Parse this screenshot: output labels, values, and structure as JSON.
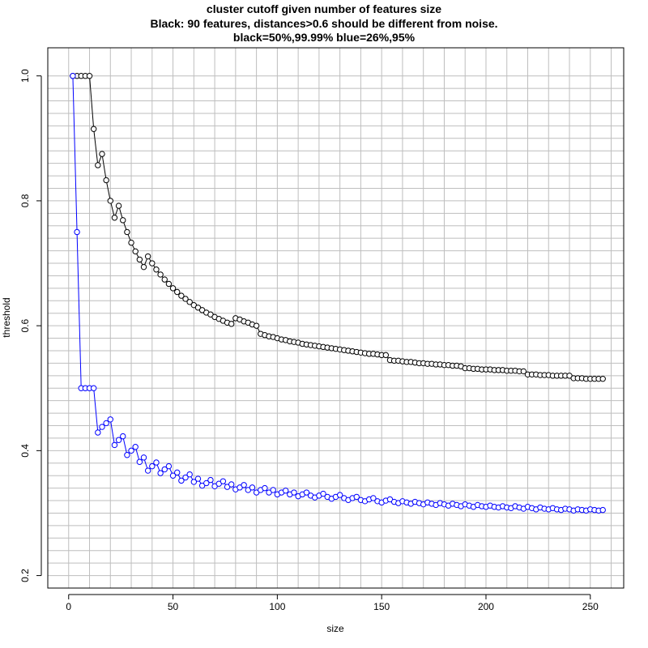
{
  "chart_data": {
    "type": "scatter",
    "title": "cluster cutoff given number of features size",
    "subtitle": "Black: 90 features, distances>0.6 should be different from noise.",
    "subtitle2": "black=50%,99.99% blue=26%,95%",
    "xlabel": "size",
    "ylabel": "threshold",
    "xlim": [
      -10,
      266
    ],
    "ylim": [
      0.18,
      1.045
    ],
    "xticks": [
      0,
      50,
      100,
      150,
      200,
      250
    ],
    "yticks": [
      0.2,
      0.4,
      0.6,
      0.8,
      1.0
    ],
    "ytick_labels": [
      "0.2",
      "0.4",
      "0.6",
      "0.8",
      "1.0"
    ],
    "grid": true,
    "marker": "open-circle",
    "line_style": "connected",
    "series": [
      {
        "color": "#000000",
        "x": [
          2,
          4,
          6,
          8,
          10,
          12,
          14,
          16,
          18,
          20,
          22,
          24,
          26,
          28,
          30,
          32,
          34,
          36,
          38,
          40,
          42,
          44,
          46,
          48,
          50,
          52,
          54,
          56,
          58,
          60,
          62,
          64,
          66,
          68,
          70,
          72,
          74,
          76,
          78,
          80,
          82,
          84,
          86,
          88,
          90,
          92,
          94,
          96,
          98,
          100,
          102,
          104,
          106,
          108,
          110,
          112,
          114,
          116,
          118,
          120,
          122,
          124,
          126,
          128,
          130,
          132,
          134,
          136,
          138,
          140,
          142,
          144,
          146,
          148,
          150,
          152,
          154,
          156,
          158,
          160,
          162,
          164,
          166,
          168,
          170,
          172,
          174,
          176,
          178,
          180,
          182,
          184,
          186,
          188,
          190,
          192,
          194,
          196,
          198,
          200,
          202,
          204,
          206,
          208,
          210,
          212,
          214,
          216,
          218,
          220,
          222,
          224,
          226,
          228,
          230,
          232,
          234,
          236,
          238,
          240,
          242,
          244,
          246,
          248,
          250,
          252,
          254,
          256
        ],
        "y": [
          1.0,
          1.0,
          1.0,
          1.0,
          1.0,
          0.915,
          0.857,
          0.875,
          0.833,
          0.8,
          0.773,
          0.792,
          0.769,
          0.75,
          0.733,
          0.719,
          0.706,
          0.694,
          0.711,
          0.7,
          0.69,
          0.682,
          0.674,
          0.667,
          0.66,
          0.654,
          0.648,
          0.643,
          0.638,
          0.633,
          0.629,
          0.625,
          0.621,
          0.618,
          0.614,
          0.611,
          0.608,
          0.605,
          0.603,
          0.612,
          0.61,
          0.607,
          0.605,
          0.602,
          0.6,
          0.587,
          0.585,
          0.583,
          0.582,
          0.58,
          0.578,
          0.577,
          0.575,
          0.574,
          0.573,
          0.571,
          0.57,
          0.569,
          0.568,
          0.567,
          0.566,
          0.565,
          0.564,
          0.563,
          0.562,
          0.561,
          0.56,
          0.559,
          0.558,
          0.557,
          0.556,
          0.555,
          0.555,
          0.554,
          0.553,
          0.553,
          0.545,
          0.544,
          0.544,
          0.543,
          0.542,
          0.542,
          0.541,
          0.54,
          0.54,
          0.539,
          0.539,
          0.538,
          0.538,
          0.537,
          0.537,
          0.536,
          0.536,
          0.535,
          0.532,
          0.532,
          0.531,
          0.531,
          0.53,
          0.53,
          0.53,
          0.529,
          0.529,
          0.529,
          0.528,
          0.528,
          0.528,
          0.527,
          0.527,
          0.522,
          0.522,
          0.522,
          0.521,
          0.521,
          0.521,
          0.52,
          0.52,
          0.52,
          0.52,
          0.52,
          0.516,
          0.516,
          0.516,
          0.515,
          0.515,
          0.515,
          0.515,
          0.515
        ]
      },
      {
        "color": "#0000ff",
        "x": [
          2,
          4,
          6,
          8,
          10,
          12,
          14,
          16,
          18,
          20,
          22,
          24,
          26,
          28,
          30,
          32,
          34,
          36,
          38,
          40,
          42,
          44,
          46,
          48,
          50,
          52,
          54,
          56,
          58,
          60,
          62,
          64,
          66,
          68,
          70,
          72,
          74,
          76,
          78,
          80,
          82,
          84,
          86,
          88,
          90,
          92,
          94,
          96,
          98,
          100,
          102,
          104,
          106,
          108,
          110,
          112,
          114,
          116,
          118,
          120,
          122,
          124,
          126,
          128,
          130,
          132,
          134,
          136,
          138,
          140,
          142,
          144,
          146,
          148,
          150,
          152,
          154,
          156,
          158,
          160,
          162,
          164,
          166,
          168,
          170,
          172,
          174,
          176,
          178,
          180,
          182,
          184,
          186,
          188,
          190,
          192,
          194,
          196,
          198,
          200,
          202,
          204,
          206,
          208,
          210,
          212,
          214,
          216,
          218,
          220,
          222,
          224,
          226,
          228,
          230,
          232,
          234,
          236,
          238,
          240,
          242,
          244,
          246,
          248,
          250,
          252,
          254,
          256
        ],
        "y": [
          1.0,
          0.75,
          0.5,
          0.5,
          0.5,
          0.5,
          0.429,
          0.438,
          0.444,
          0.45,
          0.409,
          0.417,
          0.423,
          0.393,
          0.4,
          0.406,
          0.382,
          0.389,
          0.368,
          0.375,
          0.381,
          0.364,
          0.37,
          0.375,
          0.36,
          0.365,
          0.352,
          0.357,
          0.362,
          0.35,
          0.355,
          0.344,
          0.348,
          0.353,
          0.343,
          0.347,
          0.351,
          0.342,
          0.346,
          0.338,
          0.341,
          0.345,
          0.337,
          0.341,
          0.333,
          0.337,
          0.34,
          0.333,
          0.337,
          0.33,
          0.333,
          0.336,
          0.33,
          0.333,
          0.327,
          0.33,
          0.333,
          0.328,
          0.325,
          0.328,
          0.331,
          0.326,
          0.323,
          0.326,
          0.329,
          0.324,
          0.321,
          0.324,
          0.326,
          0.321,
          0.319,
          0.322,
          0.324,
          0.319,
          0.317,
          0.32,
          0.322,
          0.318,
          0.316,
          0.319,
          0.317,
          0.315,
          0.318,
          0.316,
          0.314,
          0.317,
          0.315,
          0.313,
          0.316,
          0.314,
          0.312,
          0.315,
          0.313,
          0.311,
          0.314,
          0.312,
          0.31,
          0.313,
          0.311,
          0.31,
          0.312,
          0.31,
          0.309,
          0.311,
          0.309,
          0.308,
          0.311,
          0.309,
          0.307,
          0.31,
          0.308,
          0.306,
          0.309,
          0.307,
          0.306,
          0.308,
          0.306,
          0.305,
          0.307,
          0.306,
          0.304,
          0.306,
          0.305,
          0.304,
          0.306,
          0.305,
          0.304,
          0.305
        ]
      }
    ]
  }
}
